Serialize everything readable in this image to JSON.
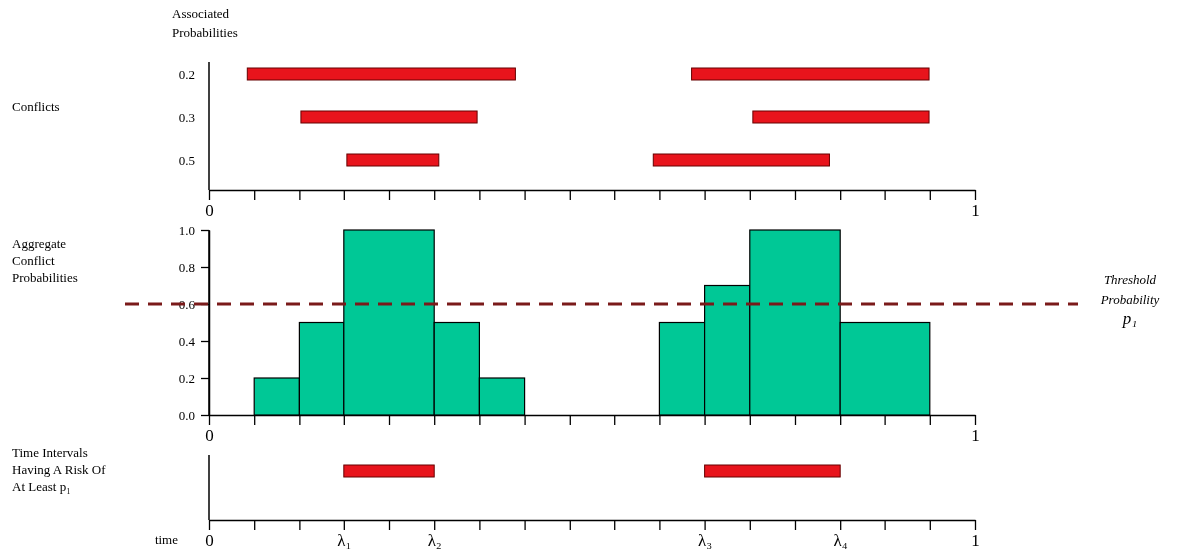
{
  "chart_data": [
    {
      "type": "bar",
      "orientation": "horizontal",
      "ylabel": "Conflicts",
      "annotations": [
        "Associated Probabilities"
      ],
      "categories": [
        "0.2",
        "0.3",
        "0.5"
      ],
      "series": [
        {
          "color": "#e8141c",
          "base": [
            0.05,
            0.12,
            0.18
          ],
          "values": [
            0.35,
            0.23,
            0.12
          ]
        },
        {
          "color": "#e8141c",
          "base": [
            0.63,
            0.71,
            0.58
          ],
          "values": [
            0.31,
            0.23,
            0.23
          ]
        }
      ],
      "xlim": [
        0,
        1
      ],
      "xticks": [
        {
          "value": 0,
          "label": "0"
        },
        {
          "value": 0.059,
          "label": null
        },
        {
          "value": 0.118,
          "label": null
        },
        {
          "value": 0.176,
          "label": null
        },
        {
          "value": 0.235,
          "label": null
        },
        {
          "value": 0.294,
          "label": null
        },
        {
          "value": 0.353,
          "label": null
        },
        {
          "value": 0.412,
          "label": null
        },
        {
          "value": 0.471,
          "label": null
        },
        {
          "value": 0.529,
          "label": null
        },
        {
          "value": 0.588,
          "label": null
        },
        {
          "value": 0.647,
          "label": null
        },
        {
          "value": 0.706,
          "label": null
        },
        {
          "value": 0.765,
          "label": null
        },
        {
          "value": 0.824,
          "label": null
        },
        {
          "value": 0.882,
          "label": null
        },
        {
          "value": 0.941,
          "label": null
        },
        {
          "value": 1,
          "label": "1"
        }
      ]
    },
    {
      "type": "histogram",
      "ylabel": "Aggregate Conflict Probabilities",
      "color": "#00c896",
      "bins": [
        0.059,
        0.118,
        0.176,
        0.294,
        0.353,
        0.412,
        0.588,
        0.647,
        0.706,
        0.824,
        0.941
      ],
      "values": [
        0.2,
        0.5,
        1.0,
        0.5,
        0.2,
        0,
        0.5,
        0.7,
        1.0,
        0.5
      ],
      "xlim": [
        0,
        1
      ],
      "ylim": [
        0,
        1
      ],
      "yticks": [
        {
          "value": 0,
          "label": "0.0"
        },
        0.2,
        0.4,
        0.6,
        0.8,
        {
          "value": 1,
          "label": "1.0"
        }
      ],
      "xticks": [
        {
          "value": 0,
          "label": "0"
        },
        {
          "value": 0.059,
          "label": null
        },
        {
          "value": 0.118,
          "label": null
        },
        {
          "value": 0.176,
          "label": null
        },
        {
          "value": 0.235,
          "label": null
        },
        {
          "value": 0.294,
          "label": null
        },
        {
          "value": 0.353,
          "label": null
        },
        {
          "value": 0.412,
          "label": null
        },
        {
          "value": 0.471,
          "label": null
        },
        {
          "value": 0.529,
          "label": null
        },
        {
          "value": 0.588,
          "label": null
        },
        {
          "value": 0.647,
          "label": null
        },
        {
          "value": 0.706,
          "label": null
        },
        {
          "value": 0.765,
          "label": null
        },
        {
          "value": 0.824,
          "label": null
        },
        {
          "value": 0.882,
          "label": null
        },
        {
          "value": 0.941,
          "label": null
        },
        {
          "value": 1,
          "label": "1"
        }
      ],
      "ref_lines": [
        {
          "axis": "y",
          "value": 0.6,
          "label": "Threshold Probability p₁",
          "color": "#7a1a1a",
          "line_style": "dashed"
        }
      ]
    },
    {
      "type": "bar",
      "orientation": "horizontal",
      "xlabel": "time",
      "ylabel": "Time Intervals Having A Risk Of At Least p₁",
      "categories": [
        null
      ],
      "series": [
        {
          "color": "#e8141c",
          "base": [
            0.176
          ],
          "values": [
            0.118
          ]
        },
        {
          "color": "#e8141c",
          "base": [
            0.647
          ],
          "values": [
            0.177
          ]
        }
      ],
      "xlim": [
        0,
        1
      ],
      "xticks": [
        {
          "value": 0,
          "label": "0"
        },
        {
          "value": 0.059,
          "label": null
        },
        {
          "value": 0.118,
          "label": null
        },
        {
          "value": 0.176,
          "label": "λ₁"
        },
        {
          "value": 0.235,
          "label": null
        },
        {
          "value": 0.294,
          "label": "λ₂"
        },
        {
          "value": 0.353,
          "label": null
        },
        {
          "value": 0.412,
          "label": null
        },
        {
          "value": 0.471,
          "label": null
        },
        {
          "value": 0.529,
          "label": null
        },
        {
          "value": 0.588,
          "label": null
        },
        {
          "value": 0.647,
          "label": "λ₃"
        },
        {
          "value": 0.706,
          "label": null
        },
        {
          "value": 0.765,
          "label": null
        },
        {
          "value": 0.824,
          "label": "λ₄"
        },
        {
          "value": 0.882,
          "label": null
        },
        {
          "value": 0.941,
          "label": null
        },
        {
          "value": 1,
          "label": "1"
        }
      ]
    }
  ]
}
